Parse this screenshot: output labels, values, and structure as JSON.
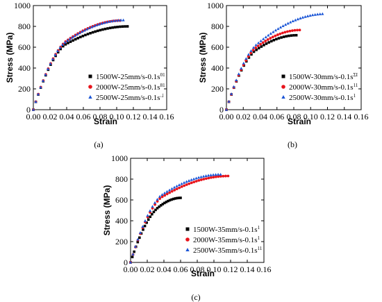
{
  "chart_data": [
    {
      "panel_label": "(a)",
      "type": "scatter",
      "xlabel": "Strain",
      "ylabel": "Stress (MPa)",
      "xlim": [
        0.0,
        0.16
      ],
      "ylim": [
        0,
        1000
      ],
      "xticks": [
        "0.00",
        "0.02",
        "0.04",
        "0.06",
        "0.08",
        "0.10",
        "0.12",
        "0.14",
        "0.16"
      ],
      "yticks": [
        "0",
        "200",
        "400",
        "600",
        "800",
        "1000"
      ],
      "legend_position": "bottom-right",
      "series": [
        {
          "name": "1500W-25mm/s-0.1s",
          "name_suffix": "01",
          "marker": "square",
          "color": "#000000",
          "end_x": 0.113,
          "peak_y": 800,
          "yield_y": 620,
          "knee_x": 0.037
        },
        {
          "name": "2000W-25mm/s-0.1s",
          "name_suffix": "81",
          "marker": "circle",
          "color": "#e8141c",
          "end_x": 0.104,
          "peak_y": 855,
          "yield_y": 650,
          "knee_x": 0.038
        },
        {
          "name": "2500W-25mm/s-0.1s",
          "name_suffix": "˔˩",
          "marker": "triangle",
          "color": "#1a55d6",
          "end_x": 0.108,
          "peak_y": 860,
          "yield_y": 640,
          "knee_x": 0.037
        }
      ]
    },
    {
      "panel_label": "(b)",
      "type": "scatter",
      "xlabel": "Strain",
      "ylabel": "Stress (MPa)",
      "xlim": [
        0.0,
        0.16
      ],
      "ylim": [
        0,
        1000
      ],
      "xticks": [
        "0.00",
        "0.02",
        "0.04",
        "0.06",
        "0.08",
        "0.10",
        "0.12",
        "0.14",
        "0.16"
      ],
      "yticks": [
        "0",
        "200",
        "400",
        "600",
        "800",
        "1000"
      ],
      "legend_position": "bottom-right",
      "series": [
        {
          "name": "1500W-30mm/s-0.1s",
          "name_suffix": "ΣI",
          "marker": "square",
          "color": "#000000",
          "end_x": 0.083,
          "peak_y": 715,
          "yield_y": 560,
          "knee_x": 0.033
        },
        {
          "name": "2000W-30mm/s-0.1s",
          "name_suffix": "11",
          "marker": "circle",
          "color": "#e8141c",
          "end_x": 0.087,
          "peak_y": 765,
          "yield_y": 590,
          "knee_x": 0.034
        },
        {
          "name": "2500W-30mm/s-0.1s",
          "name_suffix": "1",
          "marker": "triangle",
          "color": "#1a55d6",
          "end_x": 0.117,
          "peak_y": 920,
          "yield_y": 620,
          "knee_x": 0.035
        }
      ]
    },
    {
      "panel_label": "(c)",
      "type": "scatter",
      "xlabel": "Strain",
      "ylabel": "Stress (MPa)",
      "xlim": [
        0.0,
        0.16
      ],
      "ylim": [
        0,
        1000
      ],
      "xticks": [
        "0.00",
        "0.02",
        "0.04",
        "0.06",
        "0.08",
        "0.10",
        "0.12",
        "0.14",
        "0.16"
      ],
      "yticks": [
        "0",
        "200",
        "400",
        "600",
        "800",
        "1000"
      ],
      "legend_position": "bottom-right",
      "series": [
        {
          "name": "1500W-35mm/s-0.1s",
          "name_suffix": "1",
          "marker": "square",
          "color": "#000000",
          "end_x": 0.06,
          "peak_y": 620,
          "yield_y": 520,
          "knee_x": 0.032
        },
        {
          "name": "2000W-35mm/s-0.1s",
          "name_suffix": "1",
          "marker": "circle",
          "color": "#e8141c",
          "end_x": 0.117,
          "peak_y": 830,
          "yield_y": 620,
          "knee_x": 0.036
        },
        {
          "name": "2500W-35mm/s-0.1s",
          "name_suffix": "11",
          "marker": "triangle",
          "color": "#1a55d6",
          "end_x": 0.108,
          "peak_y": 845,
          "yield_y": 640,
          "knee_x": 0.036
        }
      ]
    }
  ]
}
